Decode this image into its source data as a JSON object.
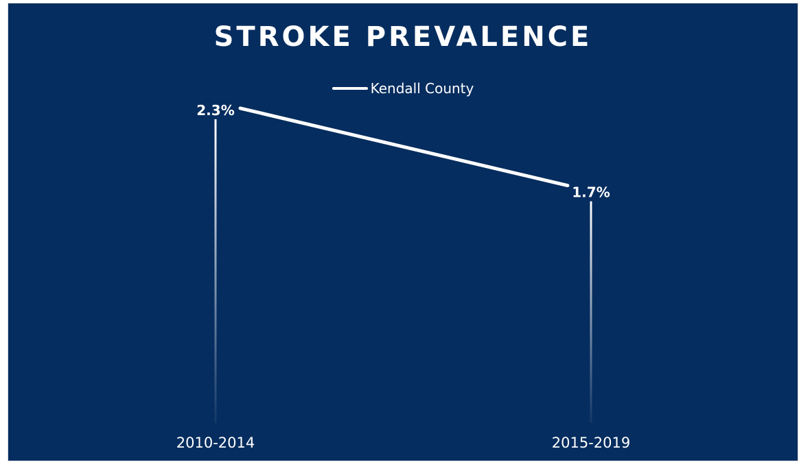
{
  "chart_data": {
    "type": "line",
    "title": "STROKE PREVALENCE",
    "categories": [
      "2010-2014",
      "2015-2019"
    ],
    "series": [
      {
        "name": "Kendall County",
        "values": [
          2.3,
          1.7
        ],
        "labels": [
          "2.3%",
          "1.7%"
        ],
        "color": "#ffffff"
      }
    ],
    "legend": "top-center",
    "grid": false,
    "drop_lines": true,
    "background": "#062d5f",
    "ylim": [
      0,
      2.5
    ]
  }
}
